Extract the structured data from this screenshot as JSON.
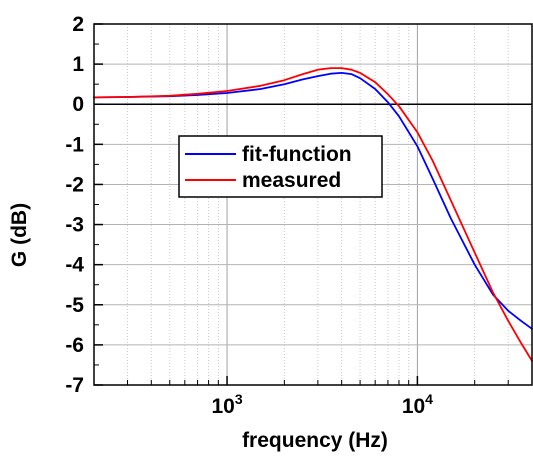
{
  "chart_data": {
    "type": "line",
    "xlabel": "frequency (Hz)",
    "ylabel": "G (dB)",
    "xscale": "log",
    "xlim": [
      200,
      40000
    ],
    "ylim": [
      -7,
      2
    ],
    "xticks_major": [
      {
        "value": 1000,
        "base": "10",
        "exp": "3"
      },
      {
        "value": 10000,
        "base": "10",
        "exp": "4"
      }
    ],
    "yticks": [
      "2",
      "1",
      "0",
      "-1",
      "-2",
      "-3",
      "-4",
      "-5",
      "-6",
      "-7"
    ],
    "grid": true,
    "zero_line": true,
    "legend_position": "center-left",
    "series": [
      {
        "name": "fit-function",
        "color": "#0000ff",
        "x": [
          200,
          300,
          500,
          700,
          1000,
          1500,
          2000,
          2500,
          3000,
          3500,
          4000,
          4500,
          5000,
          6000,
          7000,
          8000,
          10000,
          12000,
          15000,
          20000,
          25000,
          30000,
          35000,
          40000
        ],
        "y": [
          0.17,
          0.18,
          0.2,
          0.23,
          0.28,
          0.38,
          0.5,
          0.62,
          0.7,
          0.76,
          0.78,
          0.75,
          0.65,
          0.38,
          0.05,
          -0.3,
          -1.05,
          -1.85,
          -2.85,
          -4.0,
          -4.75,
          -5.15,
          -5.4,
          -5.6
        ]
      },
      {
        "name": "measured",
        "color": "#ff0000",
        "x": [
          200,
          300,
          500,
          700,
          1000,
          1500,
          2000,
          2500,
          3000,
          3500,
          4000,
          4500,
          5000,
          6000,
          7000,
          8000,
          10000,
          12000,
          15000,
          20000,
          25000,
          30000,
          35000,
          40000
        ],
        "y": [
          0.17,
          0.18,
          0.21,
          0.26,
          0.33,
          0.46,
          0.6,
          0.75,
          0.86,
          0.9,
          0.9,
          0.86,
          0.78,
          0.55,
          0.25,
          -0.05,
          -0.7,
          -1.4,
          -2.4,
          -3.7,
          -4.7,
          -5.4,
          -5.95,
          -6.4
        ]
      }
    ]
  }
}
